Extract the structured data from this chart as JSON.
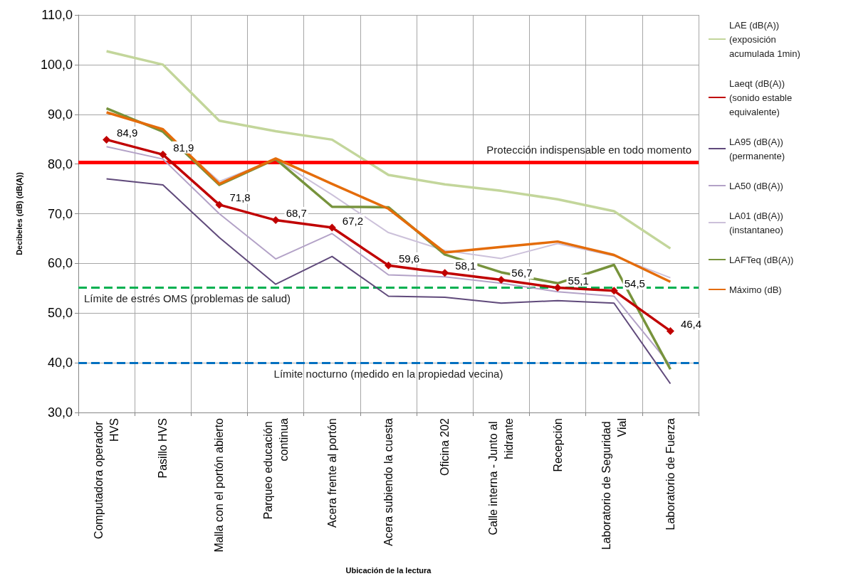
{
  "chart_data": {
    "type": "line",
    "xlabel": "Ubicación de la lectura",
    "ylabel": "Decibeles (dB) (dB(A))",
    "categories": [
      "Computadora operador HVS",
      "Pasillo HVS",
      "Malla con el portón abierto",
      "Parqueo educación continua",
      "Acera frente al portón",
      "Acera subiendo la cuesta",
      "Oficina 202",
      "Calle interna - Junto al hidrante",
      "Recepción",
      "Laboratorio de Seguridad Vial",
      "Laboratorio de Fuerza"
    ],
    "ylim": [
      30,
      110
    ],
    "yticks": [
      {
        "value": 30,
        "label": "30,0"
      },
      {
        "value": 40,
        "label": "40,0"
      },
      {
        "value": 50,
        "label": "50,0"
      },
      {
        "value": 60,
        "label": "60,0"
      },
      {
        "value": 70,
        "label": "70,0"
      },
      {
        "value": 80,
        "label": "80,0"
      },
      {
        "value": 90,
        "label": "90,0"
      },
      {
        "value": 100,
        "label": "100,0"
      },
      {
        "value": 110,
        "label": "110,0"
      }
    ],
    "grid": true,
    "legend": "right",
    "series": [
      {
        "name": "LAE (dB(A)) (exposición acumulada 1min)",
        "color": "#c3d69b",
        "marker": "none",
        "values": [
          102.7,
          100.0,
          88.7,
          86.6,
          84.9,
          77.8,
          75.9,
          74.6,
          72.9,
          70.5,
          63.0
        ]
      },
      {
        "name": "Laeqt (dB(A)) (sonido estable equivalente)",
        "color": "#c00000",
        "marker": "diamond",
        "values": [
          84.9,
          81.9,
          71.8,
          68.7,
          67.2,
          59.6,
          58.1,
          56.7,
          55.1,
          54.5,
          46.4
        ],
        "value_labels": [
          "84,9",
          "81,9",
          "71,8",
          "68,7",
          "67,2",
          "59,6",
          "58,1",
          "56,7",
          "55,1",
          "54,5",
          "46,4"
        ]
      },
      {
        "name": "LA95 (dB(A)) (permanente)",
        "color": "#604a7b",
        "marker": "none",
        "values": [
          77.0,
          75.8,
          65.2,
          55.8,
          61.4,
          53.4,
          53.2,
          52.0,
          52.5,
          52.0,
          35.8
        ]
      },
      {
        "name": "LA50 (dB(A))",
        "color": "#b3a2c7",
        "marker": "none",
        "values": [
          83.5,
          81.0,
          70.0,
          60.9,
          66.0,
          57.7,
          57.3,
          56.0,
          54.3,
          53.4,
          39.5
        ]
      },
      {
        "name": "LA01 (dB(A)) (instantaneo)",
        "color": "#ccc1da",
        "marker": "none",
        "values": [
          91.2,
          86.5,
          76.5,
          81.0,
          73.8,
          66.2,
          62.6,
          61.0,
          64.0,
          61.5,
          57.1
        ]
      },
      {
        "name": "LAFTeq (dB(A))",
        "color": "#77933c",
        "marker": "none",
        "values": [
          91.2,
          86.5,
          75.8,
          81.0,
          71.4,
          71.3,
          61.8,
          58.2,
          56.0,
          59.7,
          38.7
        ]
      },
      {
        "name": "Máximo (dB)",
        "color": "#e46c0a",
        "marker": "none",
        "values": [
          90.4,
          87.0,
          76.0,
          81.1,
          76.0,
          71.0,
          62.2,
          63.3,
          64.4,
          61.7,
          56.3
        ]
      }
    ],
    "ref_lines": [
      {
        "axis": "y",
        "value": 80.4,
        "label": "Protección indispensable en todo momento",
        "color": "#ff0000",
        "line_style": "solid"
      },
      {
        "axis": "y",
        "value": 55.2,
        "label": "Límite de estrés OMS (problemas de salud)",
        "color": "#00b050",
        "line_style": "dashed"
      },
      {
        "axis": "y",
        "value": 40,
        "label": "Límite nocturno (medido en la propiedad vecina)",
        "color": "#0070c0",
        "line_style": "dashed"
      }
    ]
  }
}
